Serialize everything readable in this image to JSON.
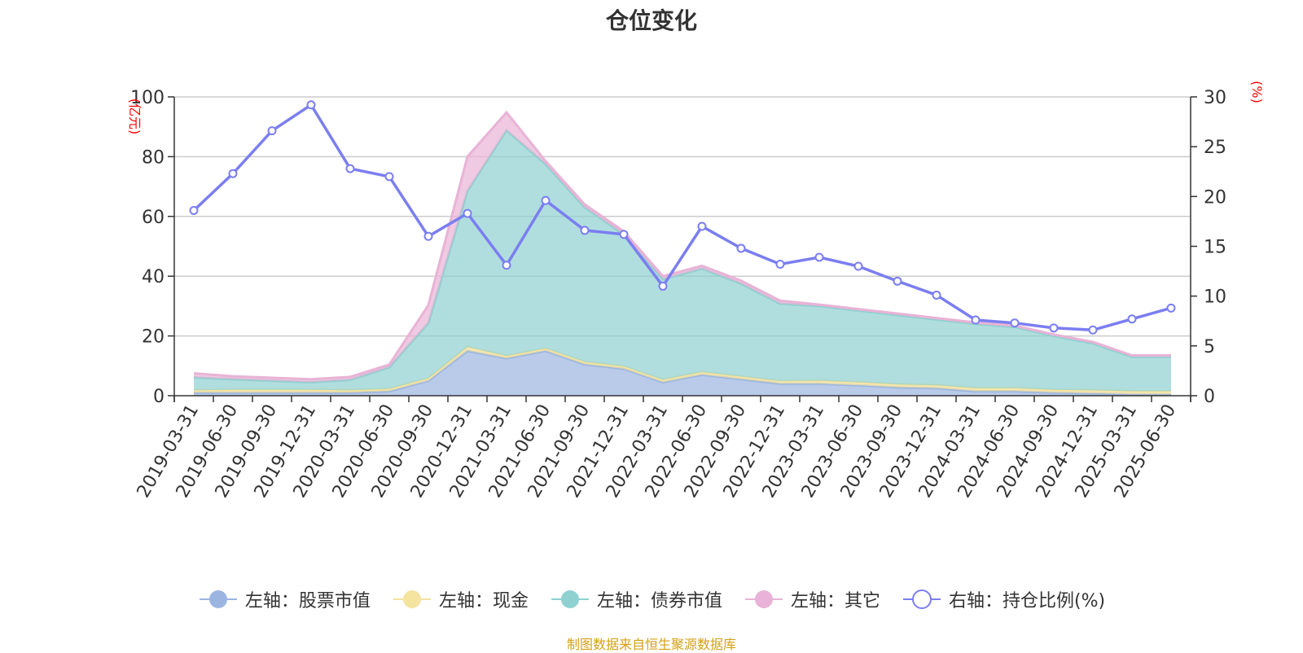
{
  "title": "仓位变化",
  "footer": "制图数据来自恒生聚源数据库",
  "chart_data": {
    "type": "area",
    "title": "仓位变化",
    "y_left_unit": "(亿元)",
    "y_right_unit": "(%)",
    "ylim_left": [
      0,
      100
    ],
    "ylim_right": [
      0,
      30
    ],
    "y_left_ticks": [
      "0",
      "20",
      "40",
      "60",
      "80",
      "100"
    ],
    "y_right_ticks": [
      "0",
      "5",
      "10",
      "15",
      "20",
      "25",
      "30"
    ],
    "grid": true,
    "legend_position": "bottom",
    "x": [
      "2019-03-31",
      "2019-06-30",
      "2019-09-30",
      "2019-12-31",
      "2020-03-31",
      "2020-06-30",
      "2020-09-30",
      "2020-12-31",
      "2021-03-31",
      "2021-06-30",
      "2021-09-30",
      "2021-12-31",
      "2022-03-31",
      "2022-06-30",
      "2022-09-30",
      "2022-12-31",
      "2023-03-31",
      "2023-06-30",
      "2023-09-30",
      "2023-12-31",
      "2024-03-31",
      "2024-06-30",
      "2024-09-30",
      "2024-12-31",
      "2025-03-31",
      "2025-06-30"
    ],
    "series": [
      {
        "name": "左轴：股票市值",
        "axis": "left",
        "stack": true,
        "color": "#9bb5e0",
        "values": [
          1.0,
          1.0,
          1.0,
          1.0,
          1.0,
          1.5,
          5.0,
          15.0,
          12.5,
          15.0,
          10.5,
          9.0,
          4.5,
          7.0,
          5.5,
          4.0,
          4.0,
          3.5,
          2.8,
          2.5,
          1.5,
          1.5,
          1.0,
          0.8,
          0.5,
          0.5
        ]
      },
      {
        "name": "左轴：现金",
        "axis": "left",
        "stack": true,
        "color": "#f5e3a0",
        "values": [
          0.8,
          1.0,
          1.0,
          1.0,
          0.8,
          0.8,
          0.8,
          1.3,
          0.8,
          0.8,
          0.8,
          0.8,
          0.8,
          0.9,
          0.9,
          0.9,
          1.0,
          1.0,
          1.0,
          1.0,
          1.0,
          1.0,
          1.0,
          1.0,
          1.0,
          1.0
        ]
      },
      {
        "name": "左轴：债券市值",
        "axis": "left",
        "stack": true,
        "color": "#8fd0d0",
        "values": [
          4.3,
          3.5,
          3.0,
          2.5,
          3.5,
          7.2,
          18.5,
          52.2,
          75.5,
          61.7,
          51.7,
          44.2,
          33.7,
          34.6,
          31.1,
          25.9,
          25.0,
          24.0,
          23.2,
          22.0,
          21.5,
          20.5,
          18.0,
          15.7,
          11.5,
          11.5
        ]
      },
      {
        "name": "左轴：其它",
        "axis": "left",
        "stack": true,
        "color": "#e8b3d6",
        "values": [
          1.4,
          1.0,
          1.0,
          1.0,
          1.0,
          0.9,
          6.0,
          11.5,
          6.0,
          1.0,
          1.0,
          1.0,
          1.0,
          1.0,
          1.0,
          1.0,
          0.5,
          0.5,
          0.5,
          0.5,
          0.5,
          0.5,
          0.5,
          0.5,
          0.5,
          0.5
        ]
      },
      {
        "name": "右轴：持仓比例(%)",
        "axis": "right",
        "type": "line",
        "color": "#7b7ef0",
        "values": [
          18.6,
          22.3,
          26.6,
          29.2,
          22.8,
          22.0,
          16.0,
          18.3,
          13.1,
          19.6,
          16.6,
          16.2,
          11.0,
          17.0,
          14.8,
          13.2,
          13.9,
          13.0,
          11.5,
          10.1,
          7.6,
          7.3,
          6.8,
          6.6,
          7.7,
          8.8
        ]
      }
    ]
  }
}
